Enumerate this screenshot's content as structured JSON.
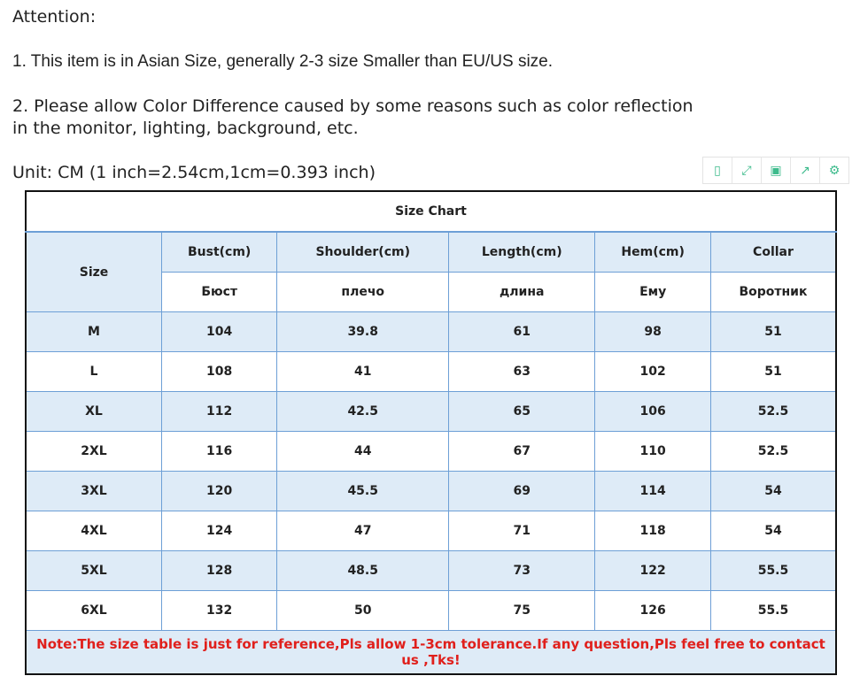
{
  "attention": "Attention:",
  "point1": "1. This item is in Asian Size, generally 2-3 size Smaller than EU/US size.",
  "point2_line1": "2. Please allow Color Difference caused by some reasons such as color reflection",
  "point2_line2": "in the monitor, lighting, background, etc.",
  "unit": "Unit: CM (1 inch=2.54cm,1cm=0.393 inch)",
  "toolbar": {
    "icons": [
      "tablet-icon",
      "expand-icon",
      "save-icon",
      "share-icon",
      "settings-icon"
    ],
    "accent": "#3dbb8c"
  },
  "table": {
    "title": "Size Chart",
    "size_header": "Size",
    "headers_en": [
      "Bust(cm)",
      "Shoulder(cm)",
      "Length(cm)",
      "Hem(cm)",
      "Collar"
    ],
    "headers_ru": [
      "Бюст",
      "плечо",
      "длина",
      "Ему",
      "Воротник"
    ],
    "rows": [
      [
        "M",
        "104",
        "39.8",
        "61",
        "98",
        "51"
      ],
      [
        "L",
        "108",
        "41",
        "63",
        "102",
        "51"
      ],
      [
        "XL",
        "112",
        "42.5",
        "65",
        "106",
        "52.5"
      ],
      [
        "2XL",
        "116",
        "44",
        "67",
        "110",
        "52.5"
      ],
      [
        "3XL",
        "120",
        "45.5",
        "69",
        "114",
        "54"
      ],
      [
        "4XL",
        "124",
        "47",
        "71",
        "118",
        "54"
      ],
      [
        "5XL",
        "128",
        "48.5",
        "73",
        "122",
        "55.5"
      ],
      [
        "6XL",
        "132",
        "50",
        "75",
        "126",
        "55.5"
      ]
    ],
    "note": "Note:The size table is just for reference,Pls allow 1-3cm tolerance.If any question,Pls feel free to contact us ,Tks!",
    "colors": {
      "band": "#deebf7",
      "grid": "#6d9fd6",
      "note": "#e0201c"
    }
  }
}
